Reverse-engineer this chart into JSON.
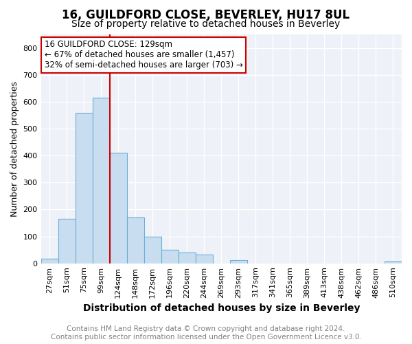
{
  "title1": "16, GUILDFORD CLOSE, BEVERLEY, HU17 8UL",
  "title2": "Size of property relative to detached houses in Beverley",
  "xlabel": "Distribution of detached houses by size in Beverley",
  "ylabel": "Number of detached properties",
  "categories": [
    "27sqm",
    "51sqm",
    "75sqm",
    "99sqm",
    "124sqm",
    "148sqm",
    "172sqm",
    "196sqm",
    "220sqm",
    "244sqm",
    "269sqm",
    "293sqm",
    "317sqm",
    "341sqm",
    "365sqm",
    "389sqm",
    "413sqm",
    "438sqm",
    "462sqm",
    "486sqm",
    "510sqm"
  ],
  "values": [
    18,
    165,
    560,
    615,
    410,
    170,
    100,
    50,
    40,
    33,
    0,
    12,
    0,
    0,
    0,
    0,
    0,
    0,
    0,
    0,
    7
  ],
  "bar_color": "#c9ddf0",
  "bar_edge_color": "#6aaed6",
  "red_line_index": 4,
  "red_line_color": "#cc0000",
  "annotation_text": "16 GUILDFORD CLOSE: 129sqm\n← 67% of detached houses are smaller (1,457)\n32% of semi-detached houses are larger (703) →",
  "annotation_box_color": "white",
  "annotation_box_edge_color": "#cc0000",
  "ylim": [
    0,
    850
  ],
  "yticks": [
    0,
    100,
    200,
    300,
    400,
    500,
    600,
    700,
    800
  ],
  "footer1": "Contains HM Land Registry data © Crown copyright and database right 2024.",
  "footer2": "Contains public sector information licensed under the Open Government Licence v3.0.",
  "bg_color": "#eef2f8",
  "title1_fontsize": 12,
  "title2_fontsize": 10,
  "xlabel_fontsize": 10,
  "ylabel_fontsize": 9,
  "tick_fontsize": 8,
  "annotation_fontsize": 8.5,
  "footer_fontsize": 7.5
}
